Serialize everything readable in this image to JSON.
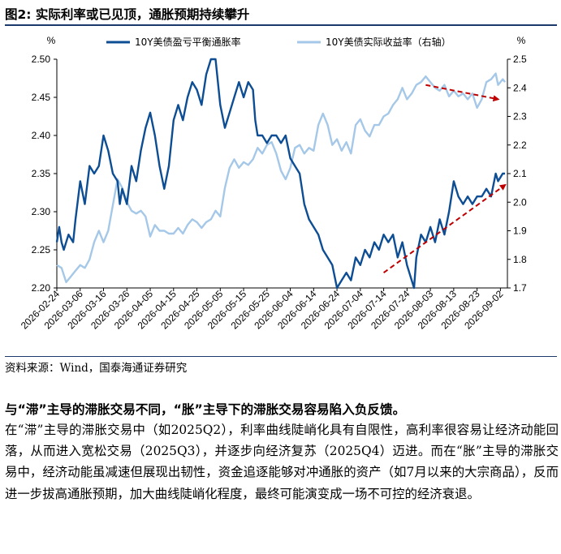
{
  "figure": {
    "title": "图2:  实际利率或已见顶，通胀预期持续攀升",
    "source": "资料来源：Wind，国泰海通证券研究"
  },
  "text": {
    "lead": "与“滞”主导的滞胀交易不同，“胀”主导下的滞胀交易容易陷入负反馈。",
    "body": "在“滞”主导的滞胀交易中（如2025Q2），利率曲线陡峭化具有自限性，高利率很容易让经济动能回落，从而进入宽松交易（2025Q3），并逐步向经济复苏（2025Q4）迈进。而在“胀”主导的滞胀交易中，经济动能虽减速但展现出韧性，资金追逐能够对冲通胀的资产（如7月以来的大宗商品），反而进一步拔高通胀预期，加大曲线陡峭化程度，最终可能演变成一场不可控的经济衰退。"
  },
  "chart_data": {
    "type": "line",
    "x_start": "2026-02-24",
    "x_end": "2026-09-05",
    "x_tick_labels": [
      "2026-02-24",
      "2026-03-06",
      "2026-03-16",
      "2026-03-26",
      "2026-04-05",
      "2026-04-15",
      "2026-04-25",
      "2026-05-05",
      "2026-05-15",
      "2026-05-25",
      "2026-06-04",
      "2026-06-14",
      "2026-06-24",
      "2026-07-04",
      "2026-07-14",
      "2026-07-24",
      "2026-08-03",
      "2026-08-13",
      "2026-08-23",
      "2026-09-02"
    ],
    "left_axis": {
      "unit": "%",
      "ylim": [
        2.2,
        2.5
      ],
      "ticks": [
        "2.20",
        "2.25",
        "2.30",
        "2.35",
        "2.40",
        "2.45",
        "2.50"
      ]
    },
    "right_axis": {
      "unit": "%",
      "ylim": [
        1.7,
        2.5
      ],
      "ticks": [
        "1.7",
        "1.8",
        "1.9",
        "2.0",
        "2.1",
        "2.2",
        "2.3",
        "2.4",
        "2.5"
      ]
    },
    "legend_position": "top",
    "series": [
      {
        "name": "10Y美债盈亏平衡通胀率",
        "axis": "left",
        "color": "#0d4d94",
        "points": [
          [
            "2026-02-24",
            2.26
          ],
          [
            "2026-02-25",
            2.28
          ],
          [
            "2026-02-26",
            2.26
          ],
          [
            "2026-02-27",
            2.25
          ],
          [
            "2026-03-01",
            2.27
          ],
          [
            "2026-03-03",
            2.26
          ],
          [
            "2026-03-04",
            2.29
          ],
          [
            "2026-03-06",
            2.34
          ],
          [
            "2026-03-08",
            2.31
          ],
          [
            "2026-03-10",
            2.36
          ],
          [
            "2026-03-12",
            2.35
          ],
          [
            "2026-03-14",
            2.36
          ],
          [
            "2026-03-16",
            2.4
          ],
          [
            "2026-03-18",
            2.38
          ],
          [
            "2026-03-20",
            2.35
          ],
          [
            "2026-03-22",
            2.34
          ],
          [
            "2026-03-23",
            2.31
          ],
          [
            "2026-03-24",
            2.33
          ],
          [
            "2026-03-26",
            2.31
          ],
          [
            "2026-03-28",
            2.36
          ],
          [
            "2026-03-30",
            2.34
          ],
          [
            "2026-04-01",
            2.38
          ],
          [
            "2026-04-03",
            2.41
          ],
          [
            "2026-04-05",
            2.43
          ],
          [
            "2026-04-07",
            2.4
          ],
          [
            "2026-04-09",
            2.36
          ],
          [
            "2026-04-11",
            2.33
          ],
          [
            "2026-04-13",
            2.36
          ],
          [
            "2026-04-15",
            2.42
          ],
          [
            "2026-04-17",
            2.44
          ],
          [
            "2026-04-19",
            2.42
          ],
          [
            "2026-04-21",
            2.45
          ],
          [
            "2026-04-23",
            2.47
          ],
          [
            "2026-04-25",
            2.46
          ],
          [
            "2026-04-27",
            2.44
          ],
          [
            "2026-04-29",
            2.48
          ],
          [
            "2026-05-01",
            2.5
          ],
          [
            "2026-05-03",
            2.5
          ],
          [
            "2026-05-05",
            2.44
          ],
          [
            "2026-05-07",
            2.41
          ],
          [
            "2026-05-09",
            2.43
          ],
          [
            "2026-05-11",
            2.45
          ],
          [
            "2026-05-13",
            2.47
          ],
          [
            "2026-05-15",
            2.45
          ],
          [
            "2026-05-17",
            2.47
          ],
          [
            "2026-05-19",
            2.46
          ],
          [
            "2026-05-20",
            2.42
          ],
          [
            "2026-05-21",
            2.4
          ],
          [
            "2026-05-23",
            2.4
          ],
          [
            "2026-05-25",
            2.39
          ],
          [
            "2026-05-27",
            2.4
          ],
          [
            "2026-05-29",
            2.4
          ],
          [
            "2026-05-31",
            2.39
          ],
          [
            "2026-06-02",
            2.4
          ],
          [
            "2026-06-04",
            2.37
          ],
          [
            "2026-06-06",
            2.36
          ],
          [
            "2026-06-08",
            2.35
          ],
          [
            "2026-06-10",
            2.31
          ],
          [
            "2026-06-12",
            2.29
          ],
          [
            "2026-06-14",
            2.28
          ],
          [
            "2026-06-16",
            2.27
          ],
          [
            "2026-06-18",
            2.25
          ],
          [
            "2026-06-20",
            2.24
          ],
          [
            "2026-06-22",
            2.23
          ],
          [
            "2026-06-24",
            2.2
          ],
          [
            "2026-06-26",
            2.21
          ],
          [
            "2026-06-28",
            2.22
          ],
          [
            "2026-06-30",
            2.21
          ],
          [
            "2026-07-02",
            2.24
          ],
          [
            "2026-07-04",
            2.23
          ],
          [
            "2026-07-06",
            2.25
          ],
          [
            "2026-07-08",
            2.24
          ],
          [
            "2026-07-10",
            2.26
          ],
          [
            "2026-07-12",
            2.25
          ],
          [
            "2026-07-14",
            2.27
          ],
          [
            "2026-07-16",
            2.26
          ],
          [
            "2026-07-18",
            2.27
          ],
          [
            "2026-07-20",
            2.24
          ],
          [
            "2026-07-22",
            2.26
          ],
          [
            "2026-07-24",
            2.23
          ],
          [
            "2026-07-26",
            2.21
          ],
          [
            "2026-07-27",
            2.2
          ],
          [
            "2026-07-28",
            2.24
          ],
          [
            "2026-07-30",
            2.27
          ],
          [
            "2026-08-01",
            2.26
          ],
          [
            "2026-08-03",
            2.28
          ],
          [
            "2026-08-05",
            2.26
          ],
          [
            "2026-08-07",
            2.29
          ],
          [
            "2026-08-09",
            2.27
          ],
          [
            "2026-08-11",
            2.3
          ],
          [
            "2026-08-13",
            2.34
          ],
          [
            "2026-08-15",
            2.32
          ],
          [
            "2026-08-17",
            2.31
          ],
          [
            "2026-08-19",
            2.32
          ],
          [
            "2026-08-21",
            2.31
          ],
          [
            "2026-08-23",
            2.32
          ],
          [
            "2026-08-25",
            2.32
          ],
          [
            "2026-08-27",
            2.33
          ],
          [
            "2026-08-29",
            2.32
          ],
          [
            "2026-08-31",
            2.35
          ],
          [
            "2026-09-01",
            2.34
          ],
          [
            "2026-09-03",
            2.35
          ],
          [
            "2026-09-04",
            2.35
          ]
        ]
      },
      {
        "name": "10Y美债实际收益率（右轴）",
        "axis": "right",
        "color": "#a5c8e8",
        "points": [
          [
            "2026-02-24",
            1.78
          ],
          [
            "2026-02-26",
            1.77
          ],
          [
            "2026-02-28",
            1.72
          ],
          [
            "2026-03-02",
            1.74
          ],
          [
            "2026-03-04",
            1.76
          ],
          [
            "2026-03-06",
            1.78
          ],
          [
            "2026-03-08",
            1.77
          ],
          [
            "2026-03-10",
            1.8
          ],
          [
            "2026-03-12",
            1.86
          ],
          [
            "2026-03-14",
            1.9
          ],
          [
            "2026-03-16",
            1.86
          ],
          [
            "2026-03-18",
            1.9
          ],
          [
            "2026-03-20",
            1.99
          ],
          [
            "2026-03-22",
            2.08
          ],
          [
            "2026-03-24",
            2.05
          ],
          [
            "2026-03-26",
            2.0
          ],
          [
            "2026-03-28",
            1.97
          ],
          [
            "2026-03-30",
            1.96
          ],
          [
            "2026-04-01",
            1.97
          ],
          [
            "2026-04-03",
            1.95
          ],
          [
            "2026-04-05",
            1.88
          ],
          [
            "2026-04-07",
            1.92
          ],
          [
            "2026-04-09",
            1.9
          ],
          [
            "2026-04-11",
            1.9
          ],
          [
            "2026-04-13",
            1.89
          ],
          [
            "2026-04-15",
            1.89
          ],
          [
            "2026-04-17",
            1.91
          ],
          [
            "2026-04-19",
            1.89
          ],
          [
            "2026-04-21",
            1.92
          ],
          [
            "2026-04-23",
            1.94
          ],
          [
            "2026-04-25",
            1.93
          ],
          [
            "2026-04-27",
            1.91
          ],
          [
            "2026-04-29",
            1.93
          ],
          [
            "2026-05-01",
            1.94
          ],
          [
            "2026-05-03",
            1.97
          ],
          [
            "2026-05-05",
            1.95
          ],
          [
            "2026-05-07",
            2.05
          ],
          [
            "2026-05-09",
            2.12
          ],
          [
            "2026-05-11",
            2.15
          ],
          [
            "2026-05-13",
            2.12
          ],
          [
            "2026-05-15",
            2.14
          ],
          [
            "2026-05-17",
            2.13
          ],
          [
            "2026-05-19",
            2.15
          ],
          [
            "2026-05-21",
            2.19
          ],
          [
            "2026-05-23",
            2.17
          ],
          [
            "2026-05-25",
            2.2
          ],
          [
            "2026-05-27",
            2.21
          ],
          [
            "2026-05-29",
            2.17
          ],
          [
            "2026-05-31",
            2.11
          ],
          [
            "2026-06-02",
            2.08
          ],
          [
            "2026-06-04",
            2.12
          ],
          [
            "2026-06-06",
            2.19
          ],
          [
            "2026-06-08",
            2.2
          ],
          [
            "2026-06-10",
            2.17
          ],
          [
            "2026-06-12",
            2.19
          ],
          [
            "2026-06-14",
            2.18
          ],
          [
            "2026-06-16",
            2.27
          ],
          [
            "2026-06-18",
            2.31
          ],
          [
            "2026-06-20",
            2.27
          ],
          [
            "2026-06-22",
            2.2
          ],
          [
            "2026-06-24",
            2.22
          ],
          [
            "2026-06-26",
            2.18
          ],
          [
            "2026-06-28",
            2.21
          ],
          [
            "2026-06-30",
            2.17
          ],
          [
            "2026-07-02",
            2.27
          ],
          [
            "2026-07-04",
            2.29
          ],
          [
            "2026-07-06",
            2.25
          ],
          [
            "2026-07-08",
            2.23
          ],
          [
            "2026-07-10",
            2.27
          ],
          [
            "2026-07-12",
            2.27
          ],
          [
            "2026-07-14",
            2.3
          ],
          [
            "2026-07-16",
            2.31
          ],
          [
            "2026-07-18",
            2.34
          ],
          [
            "2026-07-20",
            2.36
          ],
          [
            "2026-07-22",
            2.4
          ],
          [
            "2026-07-24",
            2.36
          ],
          [
            "2026-07-26",
            2.38
          ],
          [
            "2026-07-28",
            2.41
          ],
          [
            "2026-07-30",
            2.42
          ],
          [
            "2026-08-01",
            2.44
          ],
          [
            "2026-08-03",
            2.42
          ],
          [
            "2026-08-05",
            2.4
          ],
          [
            "2026-08-07",
            2.39
          ],
          [
            "2026-08-09",
            2.41
          ],
          [
            "2026-08-11",
            2.37
          ],
          [
            "2026-08-13",
            2.39
          ],
          [
            "2026-08-15",
            2.37
          ],
          [
            "2026-08-17",
            2.38
          ],
          [
            "2026-08-19",
            2.36
          ],
          [
            "2026-08-21",
            2.38
          ],
          [
            "2026-08-23",
            2.33
          ],
          [
            "2026-08-25",
            2.36
          ],
          [
            "2026-08-27",
            2.42
          ],
          [
            "2026-08-29",
            2.43
          ],
          [
            "2026-08-31",
            2.45
          ],
          [
            "2026-09-01",
            2.41
          ],
          [
            "2026-09-03",
            2.43
          ],
          [
            "2026-09-04",
            2.42
          ]
        ]
      }
    ],
    "annotations": [
      {
        "type": "dashed-arrow",
        "color": "#c00000",
        "axis": "left",
        "from": [
          "2026-07-14",
          2.22
        ],
        "to": [
          "2026-09-04",
          2.335
        ]
      },
      {
        "type": "dashed-arrow",
        "color": "#c00000",
        "axis": "right",
        "from": [
          "2026-08-01",
          2.41
        ],
        "to": [
          "2026-09-01",
          2.36
        ]
      }
    ]
  }
}
